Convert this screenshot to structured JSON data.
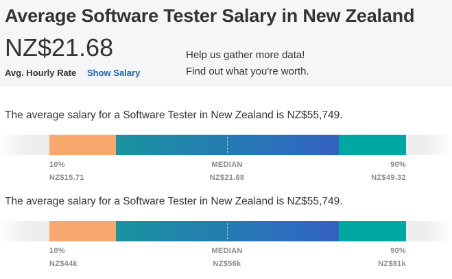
{
  "header": {
    "title": "Average Software Tester Salary in New Zealand",
    "hourly_rate": "NZ$21.68",
    "rate_label": "Avg. Hourly Rate",
    "show_salary_label": "Show Salary",
    "help_line1": "Help us gather more data!",
    "help_line2": "Find out what you're worth."
  },
  "colors": {
    "low_segment": "#f6a86e",
    "mid_segment_start": "#1a93a0",
    "mid_segment_end": "#3461c1",
    "high_segment": "#00a8a3",
    "link": "#1a63b5"
  },
  "ranges": [
    {
      "summary": "The average salary for a Software Tester in New Zealand is NZ$55,749.",
      "low_label": "10%",
      "low_value": "NZ$15.71",
      "median_label": "MEDIAN",
      "median_value": "NZ$21.68",
      "high_label": "90%",
      "high_value": "NZ$49.32"
    },
    {
      "summary": "The average salary for a Software Tester in New Zealand is NZ$55,749.",
      "low_label": "10%",
      "low_value": "NZ$44k",
      "median_label": "MEDIAN",
      "median_value": "NZ$56k",
      "high_label": "90%",
      "high_value": "NZ$81k"
    }
  ]
}
